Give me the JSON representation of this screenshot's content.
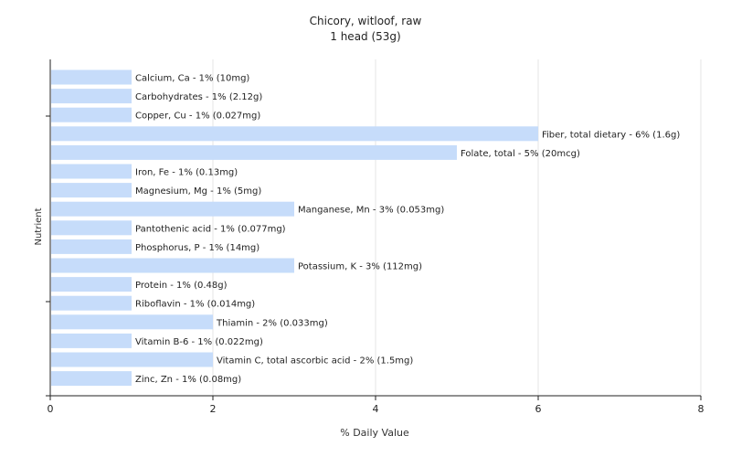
{
  "chart_data": {
    "type": "bar",
    "orientation": "horizontal",
    "title": "Chicory, witloof, raw",
    "subtitle": "1 head (53g)",
    "xlabel": "% Daily Value",
    "ylabel": "Nutrient",
    "xlim": [
      0,
      8
    ],
    "xticks": [
      0,
      2,
      4,
      6,
      8
    ],
    "grid": true,
    "bar_color": "#c6dcfa",
    "categories": [
      "Calcium, Ca",
      "Carbohydrates",
      "Copper, Cu",
      "Fiber, total dietary",
      "Folate, total",
      "Iron, Fe",
      "Magnesium, Mg",
      "Manganese, Mn",
      "Pantothenic acid",
      "Phosphorus, P",
      "Potassium, K",
      "Protein",
      "Riboflavin",
      "Thiamin",
      "Vitamin B-6",
      "Vitamin C, total ascorbic acid",
      "Zinc, Zn"
    ],
    "values": [
      1,
      1,
      1,
      6,
      5,
      1,
      1,
      3,
      1,
      1,
      3,
      1,
      1,
      2,
      1,
      2,
      1
    ],
    "labels": [
      "Calcium, Ca - 1% (10mg)",
      "Carbohydrates - 1% (2.12g)",
      "Copper, Cu - 1% (0.027mg)",
      "Fiber, total dietary - 6% (1.6g)",
      "Folate, total - 5% (20mcg)",
      "Iron, Fe - 1% (0.13mg)",
      "Magnesium, Mg - 1% (5mg)",
      "Manganese, Mn - 3% (0.053mg)",
      "Pantothenic acid - 1% (0.077mg)",
      "Phosphorus, P - 1% (14mg)",
      "Potassium, K - 3% (112mg)",
      "Protein - 1% (0.48g)",
      "Riboflavin - 1% (0.014mg)",
      "Thiamin - 2% (0.033mg)",
      "Vitamin B-6 - 1% (0.022mg)",
      "Vitamin C, total ascorbic acid - 2% (1.5mg)",
      "Zinc, Zn - 1% (0.08mg)"
    ]
  }
}
